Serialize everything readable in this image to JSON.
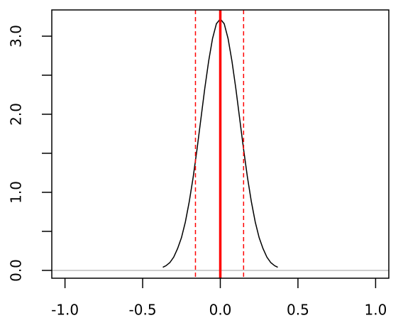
{
  "chart_data": {
    "type": "line",
    "x": [
      -0.37,
      -0.35,
      -0.325,
      -0.3,
      -0.275,
      -0.25,
      -0.225,
      -0.2,
      -0.175,
      -0.15,
      -0.125,
      -0.1,
      -0.075,
      -0.05,
      -0.025,
      0,
      0.025,
      0.05,
      0.075,
      0.1,
      0.125,
      0.15,
      0.175,
      0.2,
      0.225,
      0.25,
      0.275,
      0.3,
      0.325,
      0.35,
      0.37
    ],
    "series": [
      {
        "color": "#000000",
        "values": [
          0.04,
          0.06,
          0.1,
          0.17,
          0.28,
          0.42,
          0.62,
          0.88,
          1.19,
          1.55,
          1.94,
          2.33,
          2.68,
          2.97,
          3.16,
          3.22,
          3.16,
          2.97,
          2.68,
          2.33,
          1.94,
          1.55,
          1.19,
          0.88,
          0.62,
          0.42,
          0.28,
          0.17,
          0.1,
          0.06,
          0.04
        ]
      }
    ],
    "vlines": [
      {
        "value": -0.16,
        "color": "#ff0000",
        "dashed": true
      },
      {
        "value": 0,
        "color": "#ff0000",
        "dashed": false
      },
      {
        "value": 0.15,
        "color": "#ff0000",
        "dashed": true
      }
    ],
    "hline": {
      "value": 0,
      "color": "#bebebe"
    },
    "xlim": [
      -1.085,
      1.085
    ],
    "ylim": [
      -0.1,
      3.336
    ],
    "xticks": [
      {
        "value": -1,
        "label": "-1.0"
      },
      -0.5,
      {
        "value": 0,
        "label": "0.0"
      },
      0.5,
      {
        "value": 1,
        "label": "1.0"
      }
    ],
    "yticks": [
      {
        "value": 0,
        "label": "0.0"
      },
      {
        "value": 1,
        "label": "1.0"
      },
      {
        "value": 2,
        "label": "2.0"
      },
      {
        "value": 3,
        "label": "3.0"
      }
    ],
    "yminor_ticks": [
      0.5,
      1.5,
      2.5
    ]
  }
}
